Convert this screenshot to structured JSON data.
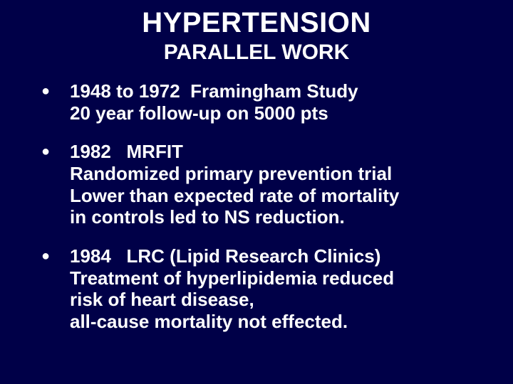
{
  "colors": {
    "background": "#000048",
    "text": "#ffffff"
  },
  "typography": {
    "family": "Arial",
    "title_size_pt": 40,
    "subtitle_size_pt": 30,
    "body_size_pt": 26,
    "weight": "bold"
  },
  "title": "HYPERTENSION",
  "subtitle": "PARALLEL WORK",
  "bullets": [
    {
      "lines": [
        "1948 to 1972  Framingham Study",
        "20 year follow-up on 5000 pts"
      ]
    },
    {
      "lines": [
        "1982   MRFIT",
        "Randomized primary prevention trial",
        "Lower than expected rate of mortality",
        "in controls led to NS reduction."
      ]
    },
    {
      "lines": [
        "1984   LRC (Lipid Research Clinics)",
        "Treatment of hyperlipidemia reduced",
        "risk of heart disease,",
        "all-cause mortality not effected."
      ]
    }
  ]
}
